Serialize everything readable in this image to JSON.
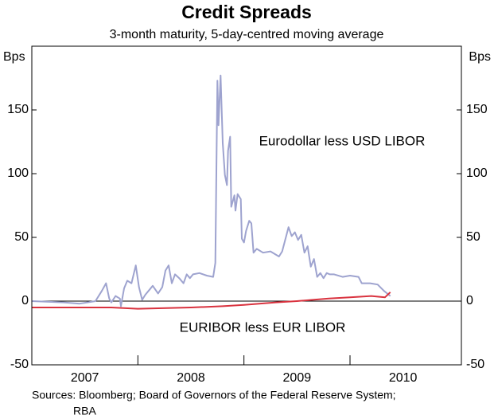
{
  "chart_data": {
    "type": "line",
    "title": "Credit Spreads",
    "subtitle": "3-month maturity, 5-day-centred moving average",
    "y_axis_label": "Bps",
    "y2_axis_label": "Bps",
    "xlim": [
      2007,
      2011.05
    ],
    "xticks": [
      2007,
      2008,
      2009,
      2010
    ],
    "ylim": [
      -50,
      200
    ],
    "yticks": [
      -50,
      0,
      50,
      100,
      150
    ],
    "y2lim": [
      -50,
      200
    ],
    "y2ticks": [
      -50,
      0,
      50,
      100,
      150
    ],
    "series": [
      {
        "name": "Eurodollar less USD LIBOR",
        "color": "#9ea3cf",
        "x": [
          2007.0,
          2007.3,
          2007.45,
          2007.6,
          2007.66,
          2007.7,
          2007.73,
          2007.75,
          2007.79,
          2007.83,
          2007.84,
          2007.87,
          2007.9,
          2007.94,
          2007.98,
          2008.01,
          2008.04,
          2008.07,
          2008.1,
          2008.14,
          2008.19,
          2008.23,
          2008.26,
          2008.29,
          2008.32,
          2008.35,
          2008.39,
          2008.43,
          2008.46,
          2008.49,
          2008.52,
          2008.58,
          2008.65,
          2008.71,
          2008.73,
          2008.75,
          2008.76,
          2008.78,
          2008.8,
          2008.82,
          2008.84,
          2008.85,
          2008.87,
          2008.88,
          2008.91,
          2008.92,
          2008.94,
          2008.97,
          2008.98,
          2009.0,
          2009.02,
          2009.05,
          2009.07,
          2009.09,
          2009.12,
          2009.18,
          2009.25,
          2009.33,
          2009.36,
          2009.42,
          2009.45,
          2009.48,
          2009.51,
          2009.54,
          2009.57,
          2009.6,
          2009.63,
          2009.66,
          2009.69,
          2009.72,
          2009.75,
          2009.78,
          2009.81,
          2009.85,
          2009.93,
          2010.0,
          2010.08,
          2010.11,
          2010.19,
          2010.26,
          2010.32,
          2010.38
        ],
        "values": [
          0,
          -1,
          -2,
          0,
          8,
          14,
          2,
          -1,
          4,
          2,
          -4,
          10,
          16,
          14,
          28,
          11,
          1,
          5,
          8,
          12,
          6,
          11,
          24,
          28,
          14,
          21,
          18,
          14,
          21,
          18,
          21,
          22,
          20,
          19,
          30,
          173,
          138,
          177,
          124,
          99,
          91,
          118,
          129,
          74,
          83,
          71,
          84,
          80,
          49,
          46,
          55,
          63,
          61,
          38,
          41,
          38,
          39,
          35,
          39,
          58,
          51,
          54,
          48,
          52,
          38,
          43,
          27,
          33,
          19,
          22,
          18,
          22,
          21,
          21,
          19,
          20,
          19,
          14,
          14,
          13,
          8,
          4
        ]
      },
      {
        "name": "EURIBOR less EUR LIBOR",
        "color": "#d9333f",
        "x": [
          2007.0,
          2007.5,
          2007.75,
          2008.0,
          2008.5,
          2008.8,
          2009.0,
          2009.3,
          2009.5,
          2009.8,
          2010.0,
          2010.2,
          2010.33,
          2010.38
        ],
        "values": [
          -5,
          -5,
          -5,
          -6,
          -5,
          -4,
          -3,
          -1,
          0,
          2,
          3,
          4,
          3,
          7
        ]
      }
    ],
    "sources": [
      "Sources: Bloomberg; Board of Governors of the Federal Reserve System;",
      "RBA"
    ]
  }
}
